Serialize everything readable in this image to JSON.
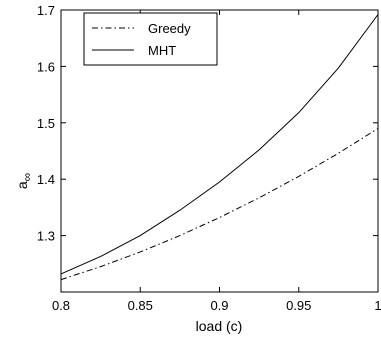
{
  "chart_data": {
    "type": "line",
    "title": "",
    "xlabel": "load (c)",
    "ylabel": "a",
    "ylabel_sub": "∞",
    "xlim": [
      0.8,
      1.0
    ],
    "ylim": [
      1.2,
      1.7
    ],
    "x_ticks": [
      0.8,
      0.85,
      0.9,
      0.95,
      1
    ],
    "x_tick_labels": [
      "0.8",
      "0.85",
      "0.9",
      "0.95",
      "1"
    ],
    "y_ticks": [
      1.3,
      1.4,
      1.5,
      1.6,
      1.7
    ],
    "y_tick_labels": [
      "1.3",
      "1.4",
      "1.5",
      "1.6",
      "1.7"
    ],
    "grid": false,
    "legend_position": "top-left",
    "series": [
      {
        "name": "Greedy",
        "line_style": "dash-dot",
        "color": "#000000",
        "x": [
          0.8,
          0.825,
          0.85,
          0.875,
          0.9,
          0.925,
          0.95,
          0.975,
          1.0
        ],
        "y": [
          1.222,
          1.245,
          1.271,
          1.3,
          1.332,
          1.367,
          1.405,
          1.446,
          1.49
        ]
      },
      {
        "name": "MHT",
        "line_style": "solid",
        "color": "#000000",
        "x": [
          0.8,
          0.825,
          0.85,
          0.875,
          0.9,
          0.925,
          0.95,
          0.975,
          1.0
        ],
        "y": [
          1.232,
          1.263,
          1.3,
          1.345,
          1.395,
          1.452,
          1.518,
          1.597,
          1.692
        ]
      }
    ]
  }
}
